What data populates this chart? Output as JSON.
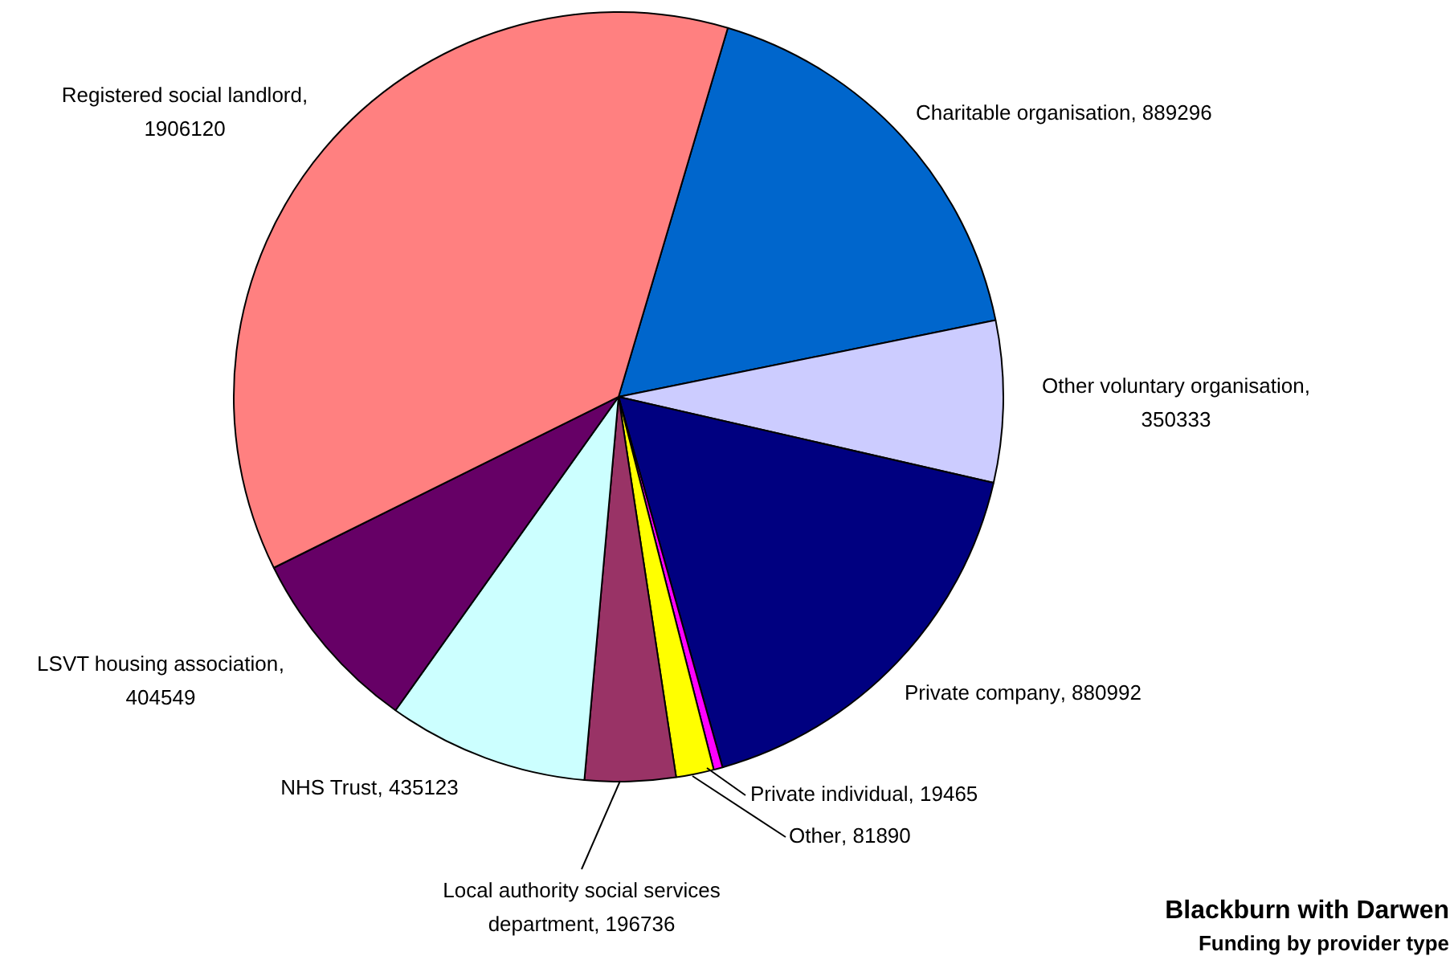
{
  "chart_data": {
    "type": "pie",
    "title": "Blackburn with Darwen",
    "subtitle": "Funding by provider type",
    "categories": [
      "Charitable organisation",
      "Other voluntary organisation",
      "Private company",
      "Private individual",
      "Other",
      "Local authority social services department",
      "NHS Trust",
      "LSVT housing association",
      "Registered social landlord"
    ],
    "values": [
      889296,
      350333,
      880992,
      19465,
      81890,
      196736,
      435123,
      404549,
      1906120
    ],
    "colors": [
      "#0066cc",
      "#ccccff",
      "#000080",
      "#ff00ff",
      "#ffff00",
      "#993366",
      "#ccffff",
      "#660066",
      "#ff8080"
    ],
    "value_labels": [
      ", 889296",
      ", 350333",
      ", 880992",
      ", 19465",
      ", 81890",
      ", 196736",
      ", 435123",
      ", 404549",
      ", 1906120"
    ],
    "legend": false
  }
}
